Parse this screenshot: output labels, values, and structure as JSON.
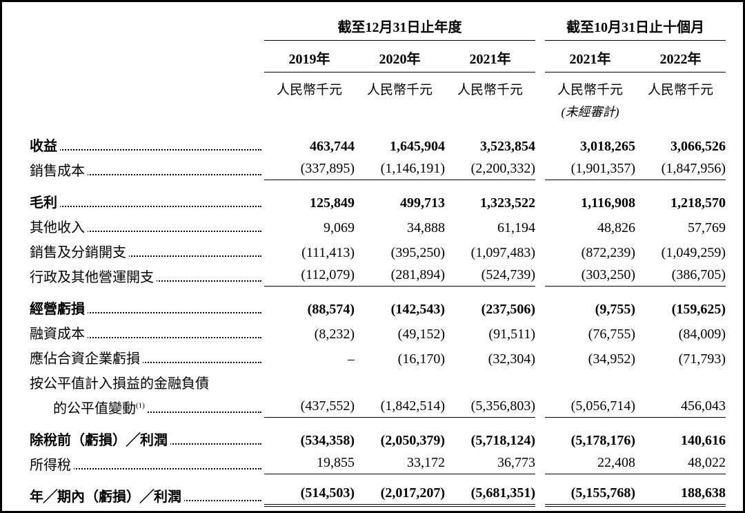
{
  "colors": {
    "text": "#000000",
    "background": "#ffffff",
    "rule": "#000000",
    "dots": "#000000"
  },
  "typography": {
    "font_family": "Times New Roman / SimSun serif",
    "base_size_pt": 15,
    "bold_weight": 700
  },
  "table": {
    "type": "table",
    "period_headers": [
      {
        "label": "截至12月31日止年度",
        "span": 3
      },
      {
        "label": "截至10月31日止十個月",
        "span": 2
      }
    ],
    "year_headers": [
      "2019年",
      "2020年",
      "2021年",
      "2021年",
      "2022年"
    ],
    "unit_headers": [
      "人民幣千元",
      "人民幣千元",
      "人民幣千元",
      "人民幣千元",
      "人民幣千元"
    ],
    "unaudited_note": "(未經審計)",
    "unaudited_note_col": 3,
    "rows": [
      {
        "label": "收益",
        "values": [
          "463,744",
          "1,645,904",
          "3,523,854",
          "3,018,265",
          "3,066,526"
        ],
        "bold": true
      },
      {
        "label": "銷售成本",
        "values": [
          "(337,895)",
          "(1,146,191)",
          "(2,200,332)",
          "(1,901,357)",
          "(1,847,956)"
        ],
        "thin_under": true
      },
      {
        "label": "毛利",
        "values": [
          "125,849",
          "499,713",
          "1,323,522",
          "1,116,908",
          "1,218,570"
        ],
        "bold": true,
        "gap_before": true
      },
      {
        "label": "其他收入",
        "values": [
          "9,069",
          "34,888",
          "61,194",
          "48,826",
          "57,769"
        ]
      },
      {
        "label": "銷售及分銷開支",
        "values": [
          "(111,413)",
          "(395,250)",
          "(1,097,483)",
          "(872,239)",
          "(1,049,259)"
        ]
      },
      {
        "label": "行政及其他營運開支",
        "values": [
          "(112,079)",
          "(281,894)",
          "(524,739)",
          "(303,250)",
          "(386,705)"
        ],
        "thin_under": true
      },
      {
        "label": "經營虧損",
        "values": [
          "(88,574)",
          "(142,543)",
          "(237,506)",
          "(9,755)",
          "(159,625)"
        ],
        "bold": true,
        "gap_before": true
      },
      {
        "label": "融資成本",
        "values": [
          "(8,232)",
          "(49,152)",
          "(91,511)",
          "(76,755)",
          "(84,009)"
        ]
      },
      {
        "label": "應佔合資企業虧損",
        "values": [
          "–",
          "(16,170)",
          "(32,304)",
          "(34,952)",
          "(71,793)"
        ]
      },
      {
        "label": "按公平值計入損益的金融負債",
        "values": [
          "",
          "",
          "",
          "",
          ""
        ],
        "no_dots": false,
        "continuation": true
      },
      {
        "label": "的公平值變動",
        "sup": "(1)",
        "indent": true,
        "values": [
          "(437,552)",
          "(1,842,514)",
          "(5,356,803)",
          "(5,056,714)",
          "456,043"
        ],
        "thin_under": true
      },
      {
        "label": "除稅前（虧損）╱利潤",
        "values": [
          "(534,358)",
          "(2,050,379)",
          "(5,718,124)",
          "(5,178,176)",
          "140,616"
        ],
        "bold": true,
        "gap_before": true
      },
      {
        "label": "所得稅",
        "values": [
          "19,855",
          "33,172",
          "36,773",
          "22,408",
          "48,022"
        ],
        "thin_under": true
      },
      {
        "label": "年╱期內（虧損）╱利潤",
        "values": [
          "(514,503)",
          "(2,017,207)",
          "(5,681,351)",
          "(5,155,768)",
          "188,638"
        ],
        "bold": true,
        "dbl_under": true,
        "gap_before": true
      }
    ]
  }
}
